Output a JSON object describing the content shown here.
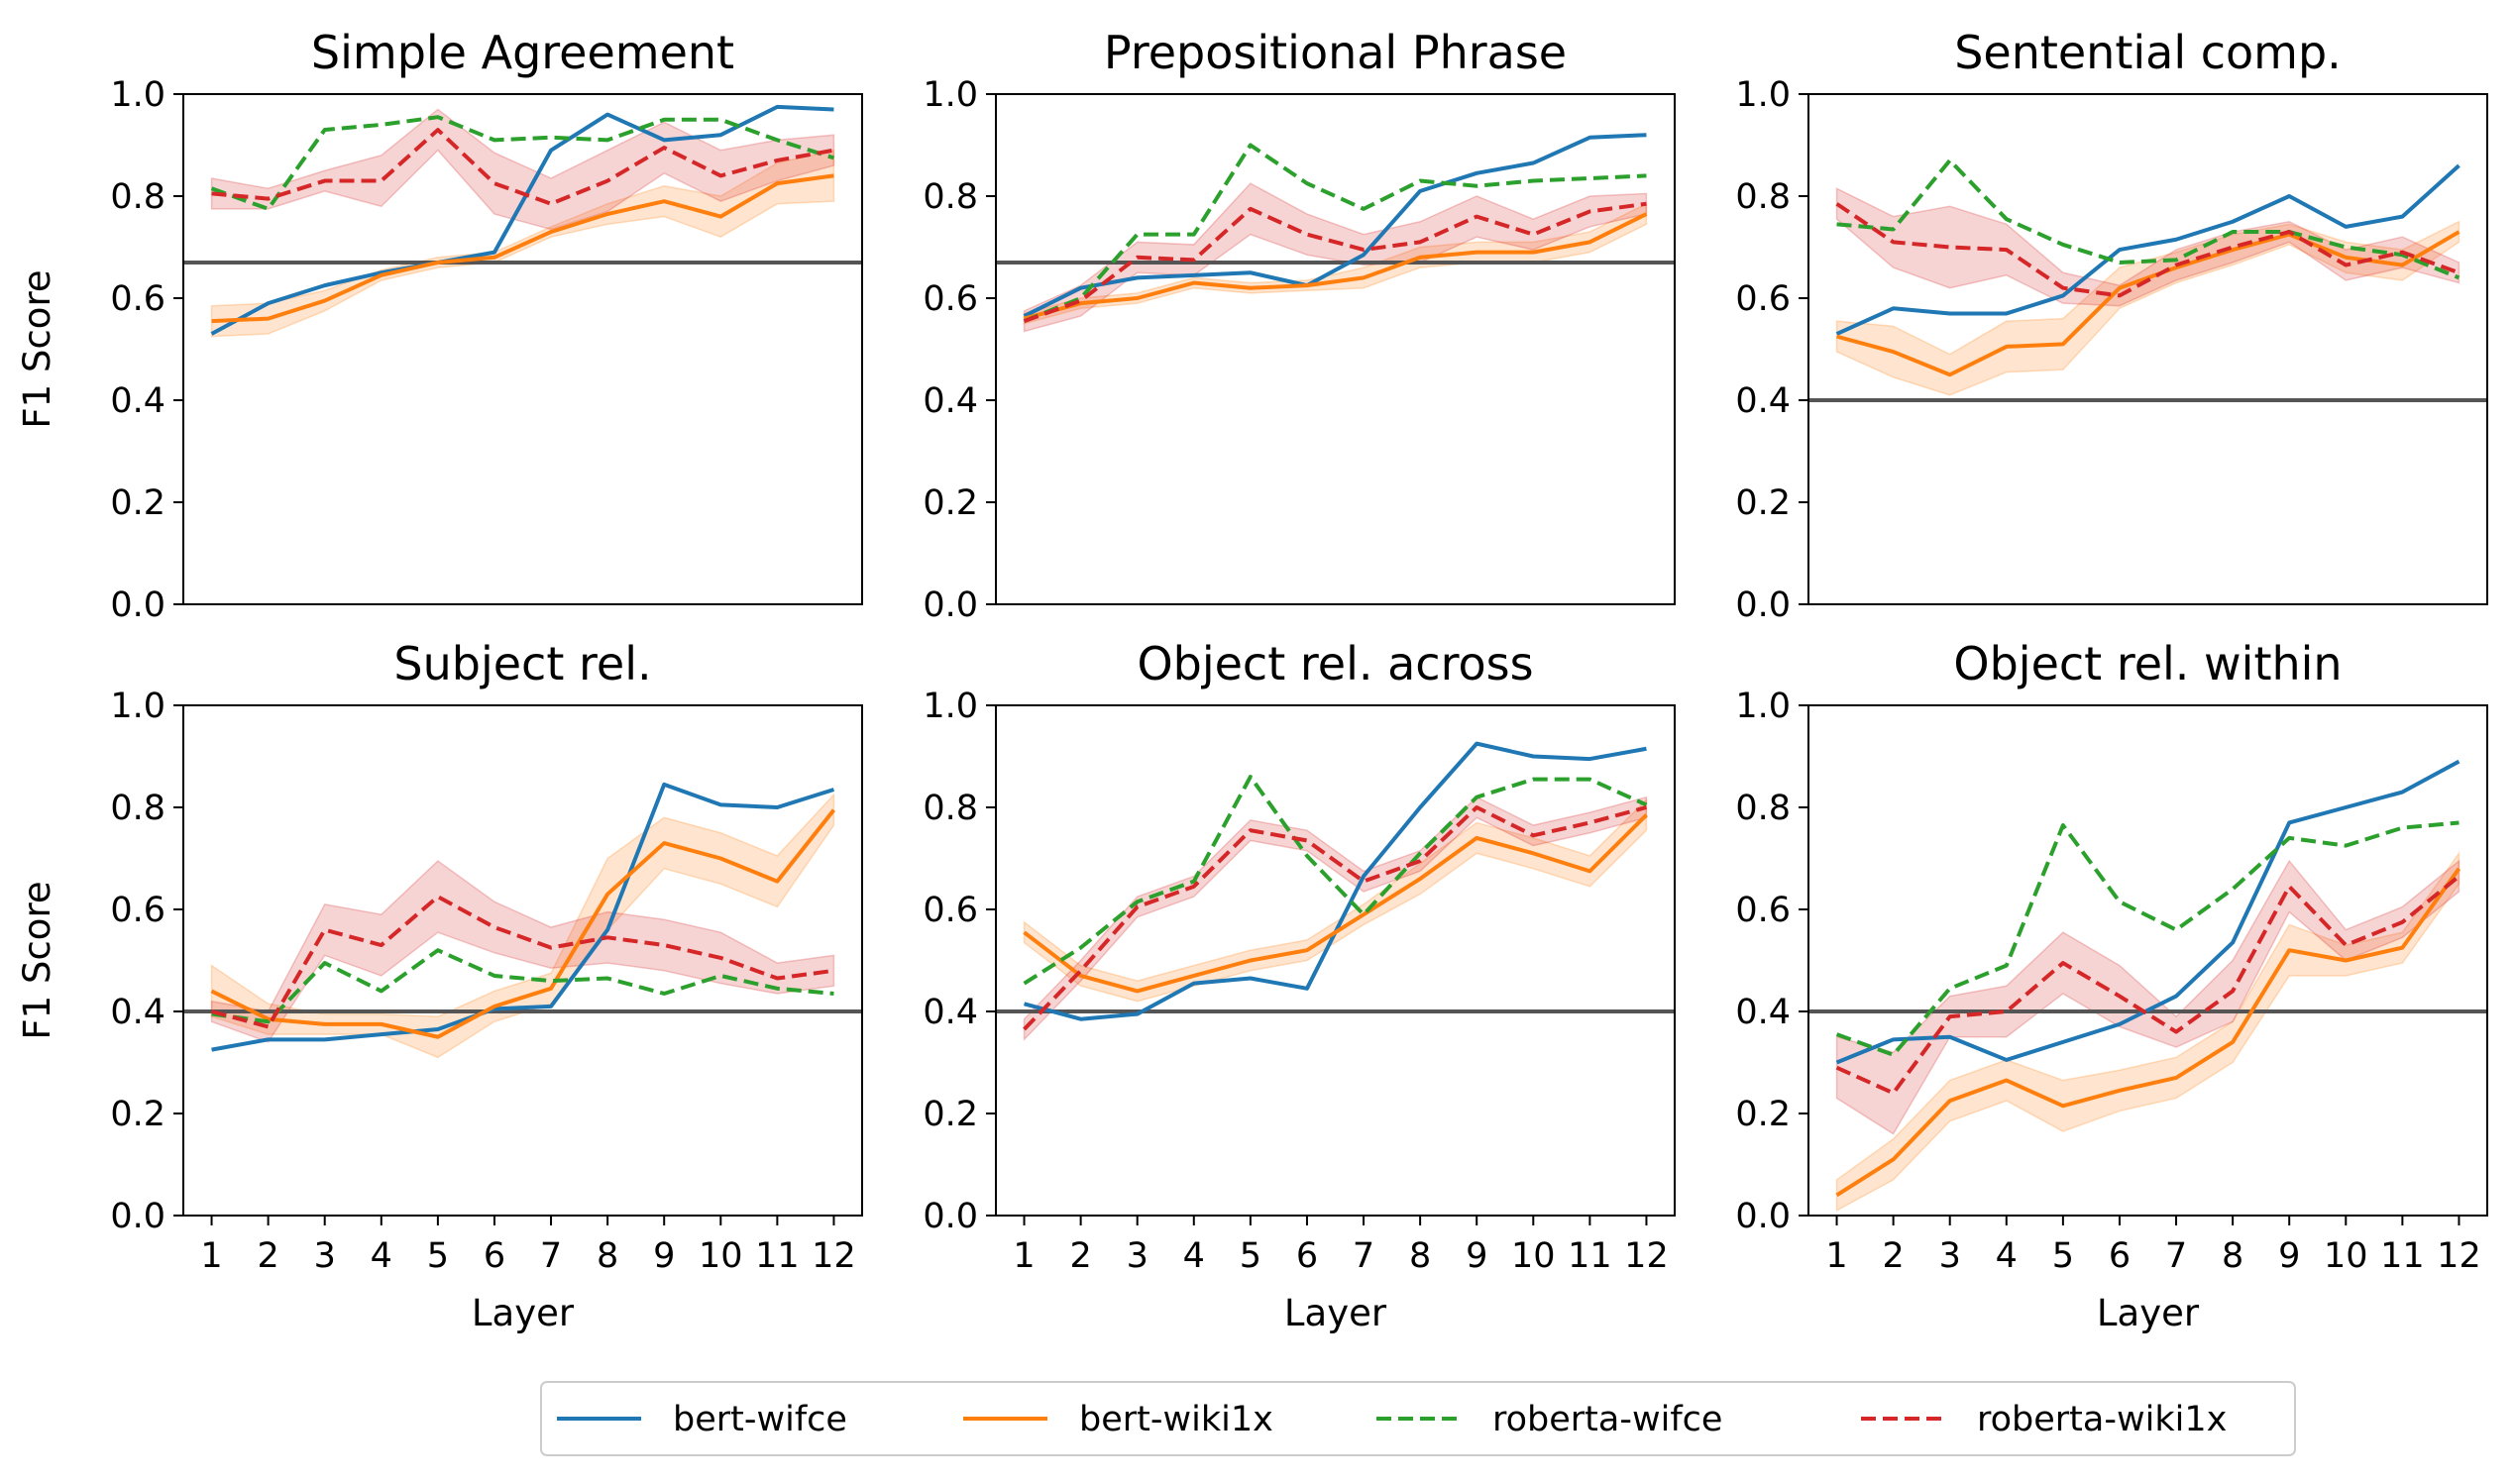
{
  "chart_data": [
    {
      "type": "line",
      "title": "Simple Agreement",
      "xlabel": "",
      "ylabel": "F1 Score",
      "ylim": [
        0,
        1
      ],
      "x": [
        1,
        2,
        3,
        4,
        5,
        6,
        7,
        8,
        9,
        10,
        11,
        12
      ],
      "baseline": 0.67,
      "series": [
        {
          "name": "bert-wifce",
          "values": [
            0.53,
            0.59,
            0.625,
            0.65,
            0.67,
            0.69,
            0.89,
            0.96,
            0.91,
            0.92,
            0.975,
            0.97
          ]
        },
        {
          "name": "bert-wiki1x",
          "values": [
            0.555,
            0.56,
            0.595,
            0.645,
            0.67,
            0.68,
            0.73,
            0.765,
            0.79,
            0.76,
            0.825,
            0.84
          ],
          "band": [
            0.03,
            0.03,
            0.02,
            0.01,
            0.01,
            0.01,
            0.01,
            0.02,
            0.03,
            0.04,
            0.04,
            0.05
          ]
        },
        {
          "name": "roberta-wifce",
          "values": [
            0.815,
            0.775,
            0.93,
            0.94,
            0.955,
            0.91,
            0.915,
            0.91,
            0.95,
            0.95,
            0.91,
            0.875
          ]
        },
        {
          "name": "roberta-wiki1x",
          "values": [
            0.805,
            0.795,
            0.83,
            0.83,
            0.93,
            0.825,
            0.785,
            0.83,
            0.895,
            0.84,
            0.87,
            0.89
          ],
          "band": [
            0.03,
            0.02,
            0.02,
            0.05,
            0.04,
            0.06,
            0.05,
            0.06,
            0.05,
            0.05,
            0.04,
            0.03
          ]
        }
      ]
    },
    {
      "type": "line",
      "title": "Prepositional Phrase",
      "xlabel": "",
      "ylabel": "",
      "ylim": [
        0,
        1
      ],
      "x": [
        1,
        2,
        3,
        4,
        5,
        6,
        7,
        8,
        9,
        10,
        11,
        12
      ],
      "baseline": 0.67,
      "series": [
        {
          "name": "bert-wifce",
          "values": [
            0.565,
            0.62,
            0.64,
            0.645,
            0.65,
            0.625,
            0.685,
            0.81,
            0.845,
            0.865,
            0.915,
            0.92
          ]
        },
        {
          "name": "bert-wiki1x",
          "values": [
            0.56,
            0.59,
            0.6,
            0.63,
            0.62,
            0.625,
            0.64,
            0.68,
            0.69,
            0.69,
            0.71,
            0.765
          ],
          "band": [
            0.01,
            0.01,
            0.01,
            0.01,
            0.01,
            0.01,
            0.02,
            0.02,
            0.02,
            0.02,
            0.02,
            0.02
          ]
        },
        {
          "name": "roberta-wifce",
          "values": [
            0.555,
            0.6,
            0.725,
            0.725,
            0.9,
            0.825,
            0.775,
            0.83,
            0.82,
            0.83,
            0.835,
            0.84
          ]
        },
        {
          "name": "roberta-wiki1x",
          "values": [
            0.555,
            0.595,
            0.68,
            0.675,
            0.775,
            0.725,
            0.695,
            0.71,
            0.76,
            0.725,
            0.77,
            0.785
          ],
          "band": [
            0.02,
            0.03,
            0.03,
            0.03,
            0.05,
            0.04,
            0.03,
            0.04,
            0.04,
            0.03,
            0.03,
            0.02
          ]
        }
      ]
    },
    {
      "type": "line",
      "title": "Sentential comp.",
      "xlabel": "",
      "ylabel": "",
      "ylim": [
        0,
        1
      ],
      "x": [
        1,
        2,
        3,
        4,
        5,
        6,
        7,
        8,
        9,
        10,
        11,
        12
      ],
      "baseline": 0.4,
      "series": [
        {
          "name": "bert-wifce",
          "values": [
            0.53,
            0.58,
            0.57,
            0.57,
            0.605,
            0.695,
            0.715,
            0.75,
            0.8,
            0.74,
            0.76,
            0.86
          ]
        },
        {
          "name": "bert-wiki1x",
          "values": [
            0.525,
            0.495,
            0.45,
            0.505,
            0.51,
            0.62,
            0.66,
            0.695,
            0.725,
            0.68,
            0.665,
            0.73
          ],
          "band": [
            0.03,
            0.05,
            0.04,
            0.05,
            0.05,
            0.04,
            0.03,
            0.03,
            0.02,
            0.03,
            0.03,
            0.02
          ]
        },
        {
          "name": "roberta-wifce",
          "values": [
            0.745,
            0.735,
            0.87,
            0.755,
            0.705,
            0.67,
            0.675,
            0.73,
            0.73,
            0.7,
            0.685,
            0.64
          ]
        },
        {
          "name": "roberta-wiki1x",
          "values": [
            0.785,
            0.71,
            0.7,
            0.695,
            0.62,
            0.605,
            0.665,
            0.7,
            0.73,
            0.665,
            0.69,
            0.65
          ],
          "band": [
            0.03,
            0.05,
            0.08,
            0.05,
            0.03,
            0.02,
            0.03,
            0.03,
            0.02,
            0.03,
            0.03,
            0.02
          ]
        }
      ]
    },
    {
      "type": "line",
      "title": "Subject rel.",
      "xlabel": "Layer",
      "ylabel": "F1 Score",
      "ylim": [
        0,
        1
      ],
      "x": [
        1,
        2,
        3,
        4,
        5,
        6,
        7,
        8,
        9,
        10,
        11,
        12
      ],
      "baseline": 0.4,
      "series": [
        {
          "name": "bert-wifce",
          "values": [
            0.325,
            0.345,
            0.345,
            0.355,
            0.365,
            0.405,
            0.41,
            0.56,
            0.845,
            0.805,
            0.8,
            0.835
          ]
        },
        {
          "name": "bert-wiki1x",
          "values": [
            0.44,
            0.385,
            0.375,
            0.375,
            0.35,
            0.41,
            0.445,
            0.63,
            0.73,
            0.7,
            0.655,
            0.795
          ],
          "band": [
            0.05,
            0.03,
            0.02,
            0.02,
            0.04,
            0.03,
            0.03,
            0.07,
            0.05,
            0.05,
            0.05,
            0.03
          ]
        },
        {
          "name": "roberta-wifce",
          "values": [
            0.395,
            0.38,
            0.495,
            0.44,
            0.52,
            0.47,
            0.46,
            0.465,
            0.435,
            0.47,
            0.445,
            0.435
          ]
        },
        {
          "name": "roberta-wiki1x",
          "values": [
            0.4,
            0.37,
            0.56,
            0.53,
            0.625,
            0.565,
            0.525,
            0.545,
            0.53,
            0.505,
            0.465,
            0.48
          ],
          "band": [
            0.02,
            0.03,
            0.05,
            0.06,
            0.07,
            0.05,
            0.04,
            0.05,
            0.05,
            0.05,
            0.03,
            0.03
          ]
        }
      ]
    },
    {
      "type": "line",
      "title": "Object rel. across",
      "xlabel": "Layer",
      "ylabel": "",
      "ylim": [
        0,
        1
      ],
      "x": [
        1,
        2,
        3,
        4,
        5,
        6,
        7,
        8,
        9,
        10,
        11,
        12
      ],
      "baseline": 0.4,
      "series": [
        {
          "name": "bert-wifce",
          "values": [
            0.415,
            0.385,
            0.395,
            0.455,
            0.465,
            0.445,
            0.665,
            0.8,
            0.925,
            0.9,
            0.895,
            0.915
          ]
        },
        {
          "name": "bert-wiki1x",
          "values": [
            0.555,
            0.47,
            0.44,
            0.47,
            0.5,
            0.52,
            0.59,
            0.66,
            0.74,
            0.71,
            0.675,
            0.785
          ],
          "band": [
            0.02,
            0.02,
            0.02,
            0.02,
            0.02,
            0.02,
            0.02,
            0.03,
            0.03,
            0.03,
            0.03,
            0.03
          ]
        },
        {
          "name": "roberta-wifce",
          "values": [
            0.455,
            0.525,
            0.615,
            0.655,
            0.86,
            0.705,
            0.59,
            0.71,
            0.82,
            0.855,
            0.855,
            0.805
          ]
        },
        {
          "name": "roberta-wiki1x",
          "values": [
            0.365,
            0.48,
            0.605,
            0.645,
            0.755,
            0.735,
            0.655,
            0.695,
            0.8,
            0.745,
            0.77,
            0.8
          ],
          "band": [
            0.02,
            0.02,
            0.02,
            0.02,
            0.02,
            0.02,
            0.02,
            0.02,
            0.02,
            0.02,
            0.02,
            0.02
          ]
        }
      ]
    },
    {
      "type": "line",
      "title": "Object rel. within",
      "xlabel": "Layer",
      "ylabel": "",
      "ylim": [
        0,
        1
      ],
      "x": [
        1,
        2,
        3,
        4,
        5,
        6,
        7,
        8,
        9,
        10,
        11,
        12
      ],
      "baseline": 0.4,
      "series": [
        {
          "name": "bert-wifce",
          "values": [
            0.3,
            0.345,
            0.35,
            0.305,
            0.34,
            0.375,
            0.43,
            0.535,
            0.77,
            0.8,
            0.83,
            0.89
          ]
        },
        {
          "name": "bert-wiki1x",
          "values": [
            0.04,
            0.11,
            0.225,
            0.265,
            0.215,
            0.245,
            0.27,
            0.34,
            0.52,
            0.5,
            0.525,
            0.68
          ],
          "band": [
            0.03,
            0.04,
            0.04,
            0.04,
            0.05,
            0.04,
            0.04,
            0.04,
            0.05,
            0.03,
            0.03,
            0.03
          ]
        },
        {
          "name": "roberta-wifce",
          "values": [
            0.355,
            0.315,
            0.445,
            0.49,
            0.765,
            0.615,
            0.56,
            0.64,
            0.74,
            0.725,
            0.76,
            0.77
          ]
        },
        {
          "name": "roberta-wiki1x",
          "values": [
            0.29,
            0.24,
            0.39,
            0.4,
            0.495,
            0.43,
            0.36,
            0.44,
            0.645,
            0.53,
            0.575,
            0.665
          ],
          "band": [
            0.06,
            0.08,
            0.04,
            0.05,
            0.06,
            0.06,
            0.03,
            0.06,
            0.05,
            0.03,
            0.03,
            0.03
          ]
        }
      ]
    }
  ],
  "legend": {
    "placement": "bottom-center",
    "entries": [
      {
        "name": "bert-wifce",
        "color": "#1f77b4",
        "style": "solid"
      },
      {
        "name": "bert-wiki1x",
        "color": "#ff7f0e",
        "style": "solid"
      },
      {
        "name": "roberta-wifce",
        "color": "#2ca02c",
        "style": "dashed"
      },
      {
        "name": "roberta-wiki1x",
        "color": "#d62728",
        "style": "dashed"
      }
    ]
  },
  "colors": {
    "baseline": "#555555"
  },
  "y_ticks": [
    "0.0",
    "0.2",
    "0.4",
    "0.6",
    "0.8",
    "1.0"
  ],
  "x_ticks": [
    "1",
    "2",
    "3",
    "4",
    "5",
    "6",
    "7",
    "8",
    "9",
    "10",
    "11",
    "12"
  ]
}
